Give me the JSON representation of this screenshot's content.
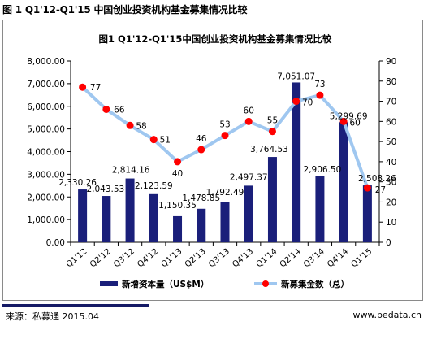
{
  "header": {
    "title": "图 1 Q1'12-Q1'15 中国创业投资机构基金募集情况比较"
  },
  "footer": {
    "source": "来源：私募通 2015.04",
    "site": "www.pedata.cn"
  },
  "chart_data": {
    "type": "bar",
    "title": "图1 Q1'12-Q1'15中国创业投资机构基金募集情况比较",
    "categories": [
      "Q1'12",
      "Q2'12",
      "Q3'12",
      "Q4'12",
      "Q1'13",
      "Q2'13",
      "Q3'13",
      "Q4'13",
      "Q1'14",
      "Q2'14",
      "Q3'14",
      "Q4'14",
      "Q1'15"
    ],
    "bar_labels": [
      "2,330.26",
      "2,043.53",
      "2,814.16",
      "2,123.59",
      "1,150.35",
      "1,478.85",
      "1,792.49",
      "2,497.37",
      "3,764.53",
      "7,051.07",
      "2,906.50",
      "5,299.69",
      "2,508.26"
    ],
    "line_labels": [
      "77",
      "66",
      "58",
      "51",
      "40",
      "46",
      "53",
      "60",
      "55",
      "70",
      "73",
      "60",
      "27"
    ],
    "series": [
      {
        "name": "新增资本量（US$M）",
        "type": "bar",
        "axis": "left",
        "color": "#1a1f7a",
        "values": [
          2330.26,
          2043.53,
          2814.16,
          2123.59,
          1150.35,
          1478.85,
          1792.49,
          2497.37,
          3764.53,
          7051.07,
          2906.5,
          5299.69,
          2508.26
        ]
      },
      {
        "name": "新募集金数（总）",
        "type": "line",
        "axis": "right",
        "color": "#9fc7f0",
        "marker_color": "#ff0000",
        "values": [
          77,
          66,
          58,
          51,
          40,
          46,
          53,
          60,
          55,
          70,
          73,
          60,
          27
        ]
      }
    ],
    "y_left": {
      "lim": [
        0,
        8000
      ],
      "ticks": [
        "0.00",
        "1,000.00",
        "2,000.00",
        "3,000.00",
        "4,000.00",
        "5,000.00",
        "6,000.00",
        "7,000.00",
        "8,000.00"
      ]
    },
    "y_right": {
      "lim": [
        0,
        90
      ],
      "ticks": [
        "0",
        "10",
        "20",
        "30",
        "40",
        "50",
        "60",
        "70",
        "80",
        "90"
      ]
    },
    "grid": false,
    "legend_position": "bottom"
  }
}
